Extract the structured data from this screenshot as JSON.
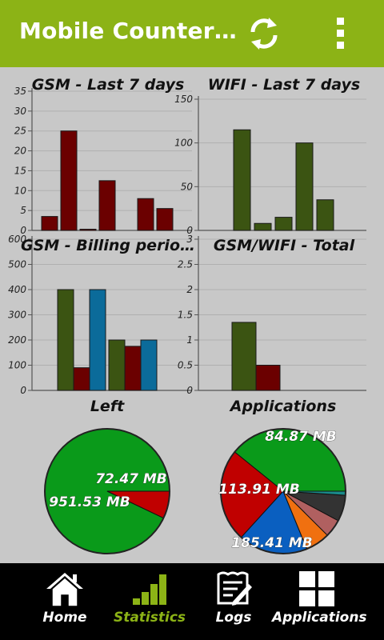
{
  "app": {
    "title": "Mobile Counter…",
    "accent": "#8cb316",
    "refresh_icon": "refresh-icon",
    "menu_icon": "overflow-menu-icon"
  },
  "chart_data": [
    {
      "type": "bar",
      "title": "GSM - Last 7 days",
      "yticks": [
        "0",
        "5",
        "10",
        "15",
        "20",
        "25",
        "30",
        "35"
      ],
      "ylim": [
        0,
        35
      ],
      "values": [
        3.5,
        25,
        0.3,
        12.5,
        0,
        8,
        5.5
      ],
      "color": "#6b0000"
    },
    {
      "type": "bar",
      "title": "WIFI - Last 7 days",
      "yticks": [
        "0",
        "50",
        "100",
        "150"
      ],
      "ylim": [
        0,
        150
      ],
      "values": [
        115,
        8,
        15,
        100,
        35
      ],
      "color": "#3b5412"
    },
    {
      "type": "bar",
      "title": "GSM - Billing perio…",
      "yticks": [
        "0",
        "100",
        "200",
        "300",
        "400",
        "500",
        "600"
      ],
      "ylim": [
        0,
        600
      ],
      "values": [
        400,
        90,
        400,
        200,
        175,
        200
      ],
      "colors": [
        "#3b5412",
        "#6b0000",
        "#0b6b9a",
        "#3b5412",
        "#6b0000",
        "#0b6b9a"
      ]
    },
    {
      "type": "bar",
      "title": "GSM/WIFI - Total",
      "yticks": [
        "0",
        "0.5",
        "1",
        "1.5",
        "2",
        "2.5",
        "3"
      ],
      "ylim": [
        0,
        3
      ],
      "values": [
        1.35,
        0.5
      ],
      "colors": [
        "#3b5412",
        "#6b0000"
      ]
    },
    {
      "type": "pie",
      "title": "Left",
      "slices": [
        {
          "value": 951.53,
          "color": "#0a9a1a"
        },
        {
          "value": 72.47,
          "color": "#c00000"
        }
      ],
      "labels": [
        "951.53 MB",
        "72.47 MB"
      ]
    },
    {
      "type": "pie",
      "title": "Applications",
      "slices": [
        {
          "value": 185.41,
          "color": "#0a9a1a"
        },
        {
          "value": 113.91,
          "color": "#c00000"
        },
        {
          "value": 84.87,
          "color": "#0a5fc0"
        },
        {
          "value": 30,
          "color": "#f07010"
        },
        {
          "value": 22,
          "color": "#b06060"
        },
        {
          "value": 32,
          "color": "#333333"
        },
        {
          "value": 5,
          "color": "#1a8a8a"
        }
      ],
      "labels": [
        "185.41 MB",
        "113.91 MB",
        "84.87 MB"
      ]
    }
  ],
  "nav": [
    {
      "label": "Home",
      "icon": "home-icon",
      "active": false
    },
    {
      "label": "Statistics",
      "icon": "statistics-icon",
      "active": true
    },
    {
      "label": "Logs",
      "icon": "logs-icon",
      "active": false
    },
    {
      "label": "Applications",
      "icon": "applications-icon",
      "active": false
    }
  ]
}
